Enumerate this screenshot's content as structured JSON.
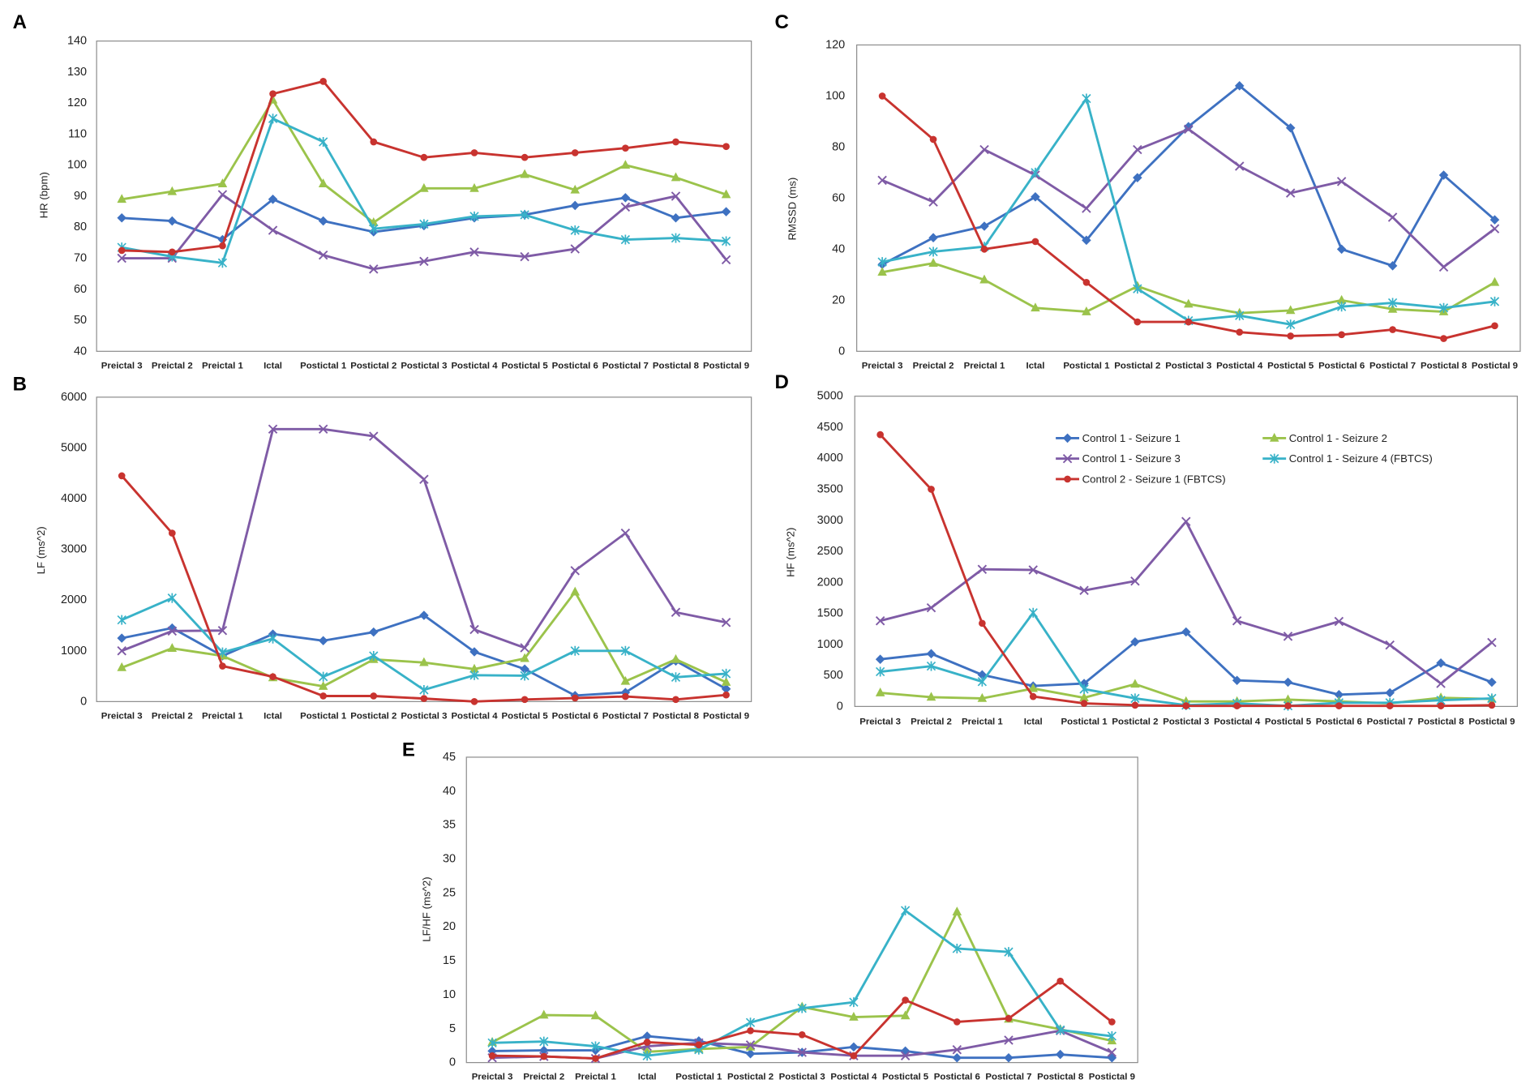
{
  "series_legend": [
    {
      "name": "Control 1 - Seizure 1",
      "color": "#3E71C1",
      "marker": "diamond"
    },
    {
      "name": "Control 1 - Seizure 2",
      "color": "#9BC34B",
      "marker": "triangle"
    },
    {
      "name": "Control 1 - Seizure 3",
      "color": "#7F5BA6",
      "marker": "x"
    },
    {
      "name": "Control 1 - Seizure 4 (FBTCS)",
      "color": "#38B2C8",
      "marker": "star"
    },
    {
      "name": "Control 2 - Seizure 1 (FBTCS)",
      "color": "#C8332F",
      "marker": "circle"
    }
  ],
  "chart_data": [
    {
      "panel": "A",
      "type": "line",
      "ylabel": "HR (bpm)",
      "ylim": [
        40,
        140
      ],
      "ystep": 10,
      "grid": false,
      "categories": [
        "Preictal 3",
        "Preictal 2",
        "Preictal 1",
        "Ictal",
        "Postictal 1",
        "Postictal 2",
        "Postictal 3",
        "Postictal 4",
        "Postictal 5",
        "Postictal 6",
        "Postictal 7",
        "Postictal 8",
        "Postictal 9"
      ],
      "series": [
        {
          "values": [
            83,
            82,
            76,
            89,
            82,
            78.5,
            80.5,
            83,
            84,
            87,
            89.5,
            83,
            85
          ]
        },
        {
          "values": [
            89,
            91.5,
            94,
            121,
            94,
            81.5,
            92.5,
            92.5,
            97,
            92,
            100,
            96,
            90.5
          ]
        },
        {
          "values": [
            70,
            70,
            90.5,
            79,
            71,
            66.5,
            69,
            72,
            70.5,
            73,
            86.5,
            90,
            69.5
          ]
        },
        {
          "values": [
            73.5,
            70.5,
            68.5,
            115,
            107.5,
            79.5,
            81,
            83.5,
            84,
            79,
            76,
            76.5,
            75.5
          ]
        },
        {
          "values": [
            72.5,
            72,
            74,
            123,
            127,
            107.5,
            102.5,
            104,
            102.5,
            104,
            105.5,
            107.5,
            106
          ]
        }
      ]
    },
    {
      "panel": "B",
      "type": "line",
      "ylabel": "LF (ms^2)",
      "ylim": [
        0,
        6000
      ],
      "ystep": 1000,
      "grid": false,
      "categories": [
        "Preictal 3",
        "Preictal 2",
        "Preictal 1",
        "Ictal",
        "Postictal 1",
        "Postictal 2",
        "Postictal 3",
        "Postictal 4",
        "Postictal 5",
        "Postictal 6",
        "Postictal 7",
        "Postictal 8",
        "Postictal 9"
      ],
      "series": [
        {
          "values": [
            1250,
            1450,
            900,
            1330,
            1200,
            1370,
            1700,
            980,
            640,
            120,
            180,
            800,
            250
          ]
        },
        {
          "values": [
            670,
            1050,
            900,
            470,
            300,
            830,
            770,
            640,
            850,
            2160,
            400,
            830,
            380
          ]
        },
        {
          "values": [
            1000,
            1390,
            1400,
            5370,
            5370,
            5230,
            4380,
            1420,
            1060,
            2580,
            3320,
            1760,
            1560
          ]
        },
        {
          "values": [
            1610,
            2040,
            970,
            1240,
            490,
            900,
            230,
            520,
            510,
            1000,
            1000,
            480,
            550
          ]
        },
        {
          "values": [
            4450,
            3320,
            700,
            490,
            110,
            110,
            60,
            0,
            40,
            70,
            100,
            40,
            130
          ]
        }
      ]
    },
    {
      "panel": "C",
      "type": "line",
      "ylabel": "RMSSD (ms)",
      "ylim": [
        0,
        120
      ],
      "ystep": 20,
      "grid": false,
      "categories": [
        "Preictal 3",
        "Preictal 2",
        "Preictal 1",
        "Ictal",
        "Postictal 1",
        "Postictal 2",
        "Postictal 3",
        "Postictal 4",
        "Postictal 5",
        "Postictal 6",
        "Postictal 7",
        "Postictal 8",
        "Postictal 9"
      ],
      "series": [
        {
          "values": [
            34,
            44.5,
            49,
            60.5,
            43.5,
            68,
            88,
            104,
            87.5,
            40,
            33.5,
            69,
            51.5
          ]
        },
        {
          "values": [
            31,
            34.5,
            28,
            17,
            15.5,
            25.5,
            18.5,
            15,
            16,
            20,
            16.5,
            15.5,
            27
          ]
        },
        {
          "values": [
            67,
            58.5,
            79,
            69,
            56,
            79,
            87,
            72.5,
            62,
            66.5,
            52.5,
            33,
            48
          ]
        },
        {
          "values": [
            35,
            39,
            41,
            70,
            99,
            24.5,
            12,
            14,
            10.5,
            17.5,
            19,
            17,
            19.5
          ]
        },
        {
          "values": [
            100,
            83,
            40,
            43,
            27,
            11.5,
            11.5,
            7.5,
            6,
            6.5,
            8.5,
            5,
            10
          ]
        }
      ]
    },
    {
      "panel": "D",
      "type": "line",
      "ylabel": "HF (ms^2)",
      "ylim": [
        0,
        5000
      ],
      "ystep": 500,
      "grid": false,
      "legend": "inside-top",
      "categories": [
        "Preictal 3",
        "Preictal 2",
        "Preictal 1",
        "Ictal",
        "Postictal 1",
        "Postictal 2",
        "Postictal 3",
        "Postictal 4",
        "Postictal 5",
        "Postictal 6",
        "Postictal 7",
        "Postictal 8",
        "Postictal 9"
      ],
      "series": [
        {
          "values": [
            760,
            850,
            510,
            330,
            370,
            1040,
            1200,
            420,
            390,
            190,
            220,
            700,
            390
          ]
        },
        {
          "values": [
            220,
            150,
            130,
            290,
            140,
            360,
            80,
            80,
            110,
            80,
            50,
            140,
            120
          ]
        },
        {
          "values": [
            1380,
            1590,
            2210,
            2200,
            1870,
            2020,
            2980,
            1380,
            1130,
            1370,
            990,
            370,
            1030
          ]
        },
        {
          "values": [
            560,
            650,
            400,
            1510,
            280,
            130,
            20,
            50,
            10,
            60,
            60,
            100,
            130
          ]
        },
        {
          "values": [
            4380,
            3500,
            1340,
            160,
            50,
            20,
            10,
            10,
            10,
            10,
            10,
            10,
            20
          ]
        }
      ]
    },
    {
      "panel": "E",
      "type": "line",
      "ylabel": "LF/HF (ms^2)",
      "ylim": [
        0,
        45
      ],
      "ystep": 5,
      "grid": false,
      "categories": [
        "Preictal 3",
        "Preictal 2",
        "Preictal 1",
        "Ictal",
        "Postictal 1",
        "Postictal 2",
        "Postictal 3",
        "Postictal 4",
        "Postictal 5",
        "Postictal 6",
        "Postictal 7",
        "Postictal 8",
        "Postictal 9"
      ],
      "series": [
        {
          "values": [
            1.7,
            1.8,
            1.8,
            3.9,
            3.2,
            1.3,
            1.5,
            2.3,
            1.7,
            0.7,
            0.7,
            1.2,
            0.7
          ]
        },
        {
          "values": [
            3,
            7,
            6.9,
            1.6,
            2,
            2.3,
            8.2,
            6.7,
            6.9,
            22.2,
            6.4,
            4.9,
            3.2
          ]
        },
        {
          "values": [
            0.7,
            0.9,
            0.6,
            2.4,
            2.9,
            2.6,
            1.5,
            1,
            1,
            1.9,
            3.3,
            4.7,
            1.5
          ]
        },
        {
          "values": [
            2.9,
            3.1,
            2.4,
            1,
            1.9,
            5.9,
            8,
            8.9,
            22.4,
            16.8,
            16.3,
            4.8,
            3.9
          ]
        },
        {
          "values": [
            1,
            0.9,
            0.6,
            3,
            2.6,
            4.7,
            4.1,
            1,
            9.2,
            6,
            6.5,
            12,
            6
          ]
        }
      ]
    }
  ]
}
